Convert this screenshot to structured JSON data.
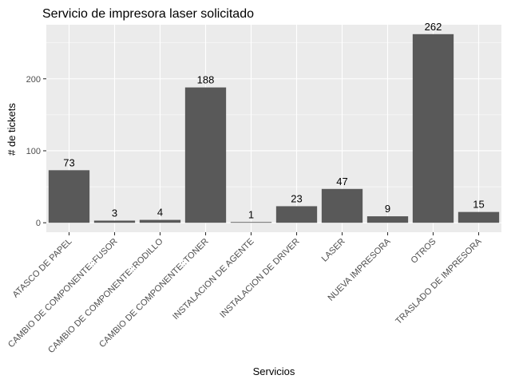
{
  "chart_data": {
    "type": "bar",
    "title": "Servicio de impresora laser solicitado",
    "xlabel": "Servicios",
    "ylabel": "# de tickets",
    "categories": [
      "ATASCO DE PAPEL",
      "CAMBIO DE COMPONENTE::FUSOR",
      "CAMBIO DE COMPONENTE::RODILLO",
      "CAMBIO DE COMPONENTE::TONER",
      "INSTALACION DE AGENTE",
      "INSTALACION DE DRIVER",
      "LASER",
      "NUEVA IMPRESORA",
      "OTROS",
      "TRASLADO DE IMPRESORA"
    ],
    "values": [
      73,
      3,
      4,
      188,
      1,
      23,
      47,
      9,
      262,
      15
    ],
    "yticks": [
      0,
      100,
      200
    ],
    "ylim": [
      -13.1,
      275.1
    ],
    "grid": true,
    "bar_color": "#595959",
    "panel_color": "#ebebeb",
    "grid_color": "#ffffff"
  }
}
